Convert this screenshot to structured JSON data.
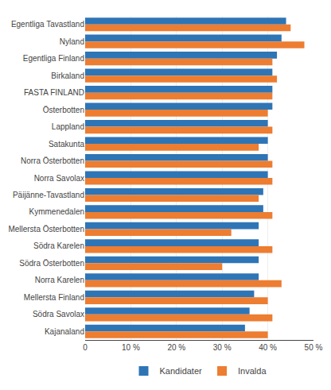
{
  "chart_data": {
    "type": "bar",
    "orientation": "horizontal",
    "categories": [
      "Egentliga Tavastland",
      "Nyland",
      "Egentliga Finland",
      "Birkaland",
      "FASTA FINLAND",
      "Österbotten",
      "Lappland",
      "Satakunta",
      "Norra Österbotten",
      "Norra Savolax",
      "Päijänne-Tavastland",
      "Kymmenedalen",
      "Mellersta Österbotten",
      "Södra Karelen",
      "Södra Österbotten",
      "Norra Karelen",
      "Mellersta Finland",
      "Södra Savolax",
      "Kajanaland"
    ],
    "series": [
      {
        "name": "Kandidater",
        "color": "#2E75B6",
        "values": [
          44,
          43,
          42,
          41,
          41,
          41,
          40,
          40,
          40,
          40,
          39,
          39,
          38,
          38,
          38,
          38,
          37,
          36,
          35
        ]
      },
      {
        "name": "Invalda",
        "color": "#ED7D31",
        "values": [
          45,
          48,
          41,
          42,
          41,
          40,
          41,
          38,
          41,
          41,
          38,
          41,
          32,
          41,
          30,
          43,
          40,
          41,
          40
        ]
      }
    ],
    "xlim": [
      0,
      50
    ],
    "xticks": [
      0,
      {
        "value": 10,
        "label": "10 %"
      },
      {
        "value": 20,
        "label": "20 %"
      },
      {
        "value": 30,
        "label": "30 %"
      },
      {
        "value": 40,
        "label": "40 %"
      },
      {
        "value": 50,
        "label": "50 %"
      }
    ],
    "grid": true,
    "legend": "bottom"
  }
}
